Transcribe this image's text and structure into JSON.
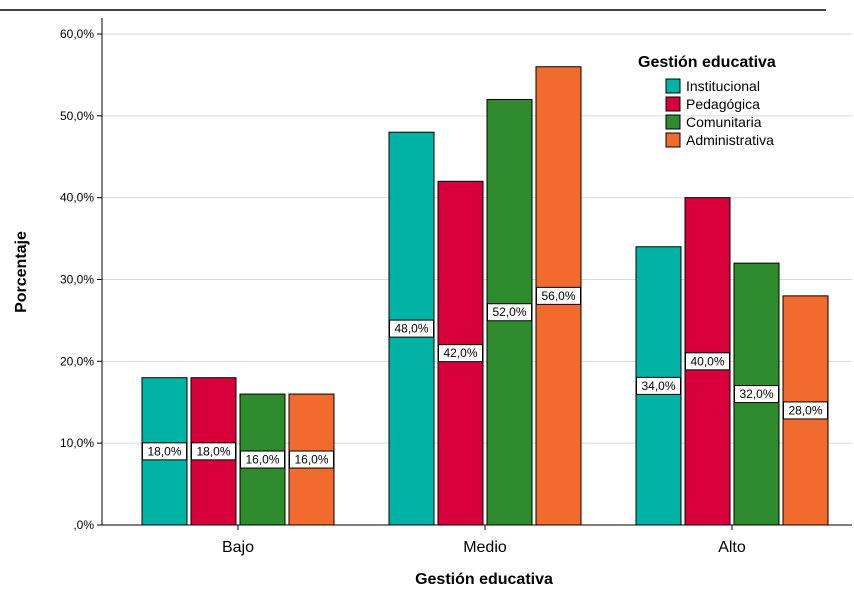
{
  "chart_data": {
    "type": "bar",
    "title": "",
    "xlabel": "Gestión educativa",
    "ylabel": "Porcentaje",
    "categories": [
      "Bajo",
      "Medio",
      "Alto"
    ],
    "ylim": [
      0,
      60
    ],
    "yticks": [
      0,
      10,
      20,
      30,
      40,
      50,
      60
    ],
    "ytick_labels": [
      ",0%",
      "10,0%",
      "20,0%",
      "30,0%",
      "40,0%",
      "50,0%",
      "60,0%"
    ],
    "grid": "horizontal",
    "legend": {
      "title": "Gestión educativa",
      "placement": "top-right"
    },
    "series": [
      {
        "name": "Institucional",
        "color": "#00b3a4",
        "values": [
          18,
          48,
          34
        ],
        "labels": [
          "18,0%",
          "48,0%",
          "34,0%"
        ]
      },
      {
        "name": "Pedagógica",
        "color": "#d8003a",
        "values": [
          18,
          42,
          40
        ],
        "labels": [
          "18,0%",
          "42,0%",
          "40,0%"
        ]
      },
      {
        "name": "Comunitaria",
        "color": "#2e8b2e",
        "values": [
          16,
          52,
          32
        ],
        "labels": [
          "16,0%",
          "52,0%",
          "32,0%"
        ]
      },
      {
        "name": "Administrativa",
        "color": "#f26b2e",
        "values": [
          16,
          56,
          28
        ],
        "labels": [
          "16,0%",
          "56,0%",
          "28,0%"
        ]
      }
    ]
  }
}
